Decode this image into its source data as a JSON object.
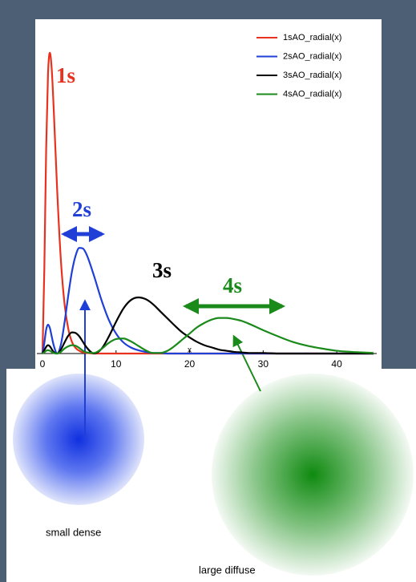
{
  "chart_data": {
    "type": "line",
    "x_label": "x",
    "x": [
      0,
      0.25,
      0.5,
      0.75,
      1,
      1.25,
      1.5,
      2,
      2.5,
      3,
      3.5,
      4,
      4.5,
      5,
      5.5,
      6,
      7,
      8,
      9,
      10,
      11,
      12,
      13,
      14,
      15,
      16,
      17,
      18,
      19,
      20,
      21,
      22,
      23,
      24,
      25,
      26,
      27,
      28,
      30,
      32,
      34,
      36,
      38,
      40,
      42,
      45
    ],
    "series": [
      {
        "name": "1sAO_radial(x)",
        "color": "#e8321e",
        "values": [
          0,
          0.152,
          0.368,
          0.502,
          0.541,
          0.513,
          0.448,
          0.293,
          0.168,
          0.089,
          0.045,
          0.021,
          0.01,
          0.005,
          0.002,
          0.001,
          0,
          0,
          0,
          0,
          0,
          0,
          0,
          0,
          0,
          0,
          0,
          0,
          0,
          0,
          0,
          0,
          0,
          0,
          0,
          0,
          0,
          0,
          0,
          0,
          0,
          0,
          0,
          0,
          0,
          0
        ]
      },
      {
        "name": "2sAO_radial(x)",
        "color": "#1f3fd6",
        "values": [
          0,
          0.019,
          0.043,
          0.052,
          0.046,
          0.031,
          0.016,
          0,
          0.016,
          0.056,
          0.104,
          0.147,
          0.176,
          0.19,
          0.189,
          0.178,
          0.14,
          0.097,
          0.061,
          0.036,
          0.02,
          0.011,
          0.006,
          0.003,
          0.001,
          0.001,
          0,
          0,
          0,
          0,
          0,
          0,
          0,
          0,
          0,
          0,
          0,
          0,
          0,
          0,
          0,
          0,
          0,
          0,
          0,
          0
        ]
      },
      {
        "name": "3sAO_radial(x)",
        "color": "#000000",
        "values": [
          0,
          0.006,
          0.012,
          0.015,
          0.013,
          0.008,
          0.003,
          0,
          0.007,
          0.02,
          0.032,
          0.038,
          0.037,
          0.031,
          0.021,
          0.011,
          0,
          0.008,
          0.03,
          0.057,
          0.081,
          0.096,
          0.101,
          0.098,
          0.089,
          0.076,
          0.063,
          0.05,
          0.038,
          0.029,
          0.021,
          0.015,
          0.011,
          0.007,
          0.005,
          0.003,
          0.002,
          0.001,
          0.001,
          0,
          0,
          0,
          0,
          0,
          0,
          0
        ]
      },
      {
        "name": "4sAO_radial(x)",
        "color": "#1a8a1a",
        "values": [
          0,
          0.002,
          0.005,
          0.006,
          0.005,
          0.003,
          0.001,
          0,
          0.003,
          0.009,
          0.013,
          0.015,
          0.014,
          0.01,
          0.005,
          0.002,
          0.001,
          0.008,
          0.019,
          0.026,
          0.027,
          0.022,
          0.014,
          0.006,
          0.001,
          0.001,
          0.005,
          0.014,
          0.025,
          0.036,
          0.047,
          0.055,
          0.061,
          0.064,
          0.064,
          0.062,
          0.059,
          0.054,
          0.042,
          0.031,
          0.021,
          0.014,
          0.009,
          0.005,
          0.003,
          0.001
        ]
      }
    ],
    "xlim": [
      0,
      45
    ],
    "xticks": [
      0,
      10,
      20,
      30,
      40
    ],
    "ylim": [
      0,
      0.6
    ],
    "legend": "top-right",
    "annotations": [
      {
        "text": "1s",
        "color": "#e8321e"
      },
      {
        "text": "2s",
        "color": "#1f3fd6"
      },
      {
        "text": "3s",
        "color": "#000000"
      },
      {
        "text": "4s",
        "color": "#1a8a1a"
      }
    ],
    "captions": [
      "small dense",
      "large diffuse"
    ]
  }
}
